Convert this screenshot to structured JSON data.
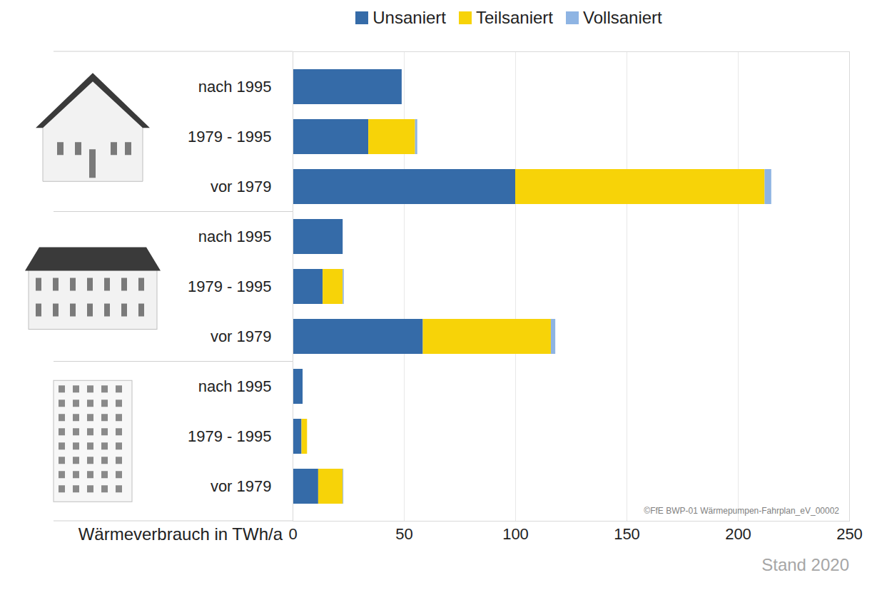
{
  "chart_data": {
    "type": "bar",
    "orientation": "horizontal",
    "stacked": true,
    "categories": [
      "nach 1995",
      "1979 - 1995",
      "vor 1979",
      "nach 1995",
      "1979 - 1995",
      "vor 1979",
      "nach 1995",
      "1979 - 1995",
      "vor 1979"
    ],
    "series": [
      {
        "name": "Unsaniert",
        "color": "#356ba8",
        "values": [
          49,
          34,
          100,
          22.5,
          13.5,
          58.5,
          4.5,
          4,
          11.5
        ]
      },
      {
        "name": "Teilsaniert",
        "color": "#f7d308",
        "values": [
          0,
          21,
          112,
          0,
          9,
          57.5,
          0,
          2.5,
          11
        ]
      },
      {
        "name": "Vollsaniert",
        "color": "#8eb4e3",
        "values": [
          0,
          1,
          3,
          0,
          0.5,
          2,
          0,
          0,
          0.3
        ]
      }
    ],
    "xlabel": "Wärmeverbrauch in TWh/a",
    "xlim": [
      0,
      250
    ],
    "xticks": [
      0,
      50,
      100,
      150,
      200,
      250
    ],
    "grid": true,
    "legend": "top",
    "annotations": [
      "©FfE BWP-01 Wärmepumpen-Fahrplan_eV_00002"
    ],
    "caption": "Stand 2020"
  }
}
